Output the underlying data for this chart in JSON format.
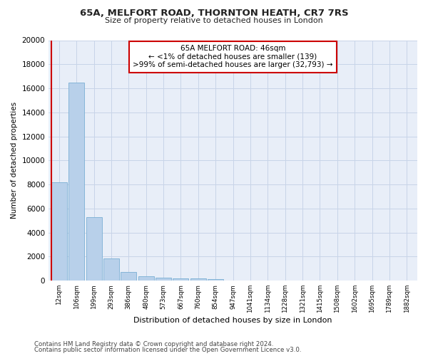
{
  "title_line1": "65A, MELFORT ROAD, THORNTON HEATH, CR7 7RS",
  "title_line2": "Size of property relative to detached houses in London",
  "xlabel": "Distribution of detached houses by size in London",
  "ylabel": "Number of detached properties",
  "bar_color": "#b8d0ea",
  "bar_edge_color": "#7aafd4",
  "annotation_box_color": "#cc0000",
  "annotation_line1": "65A MELFORT ROAD: 46sqm",
  "annotation_line2": "← <1% of detached houses are smaller (139)",
  "annotation_line3": ">99% of semi-detached houses are larger (32,793) →",
  "categories": [
    "12sqm",
    "106sqm",
    "199sqm",
    "293sqm",
    "386sqm",
    "480sqm",
    "573sqm",
    "667sqm",
    "760sqm",
    "854sqm",
    "947sqm",
    "1041sqm",
    "1134sqm",
    "1228sqm",
    "1321sqm",
    "1415sqm",
    "1508sqm",
    "1602sqm",
    "1695sqm",
    "1789sqm",
    "1882sqm"
  ],
  "values": [
    8200,
    16500,
    5300,
    1850,
    750,
    350,
    270,
    210,
    190,
    160,
    0,
    0,
    0,
    0,
    0,
    0,
    0,
    0,
    0,
    0,
    0
  ],
  "ylim": [
    0,
    20000
  ],
  "yticks": [
    0,
    2000,
    4000,
    6000,
    8000,
    10000,
    12000,
    14000,
    16000,
    18000,
    20000
  ],
  "footnote_line1": "Contains HM Land Registry data © Crown copyright and database right 2024.",
  "footnote_line2": "Contains public sector information licensed under the Open Government Licence v3.0.",
  "bg_color": "#ffffff",
  "plot_bg_color": "#e8eef8",
  "grid_color": "#c8d4e8"
}
